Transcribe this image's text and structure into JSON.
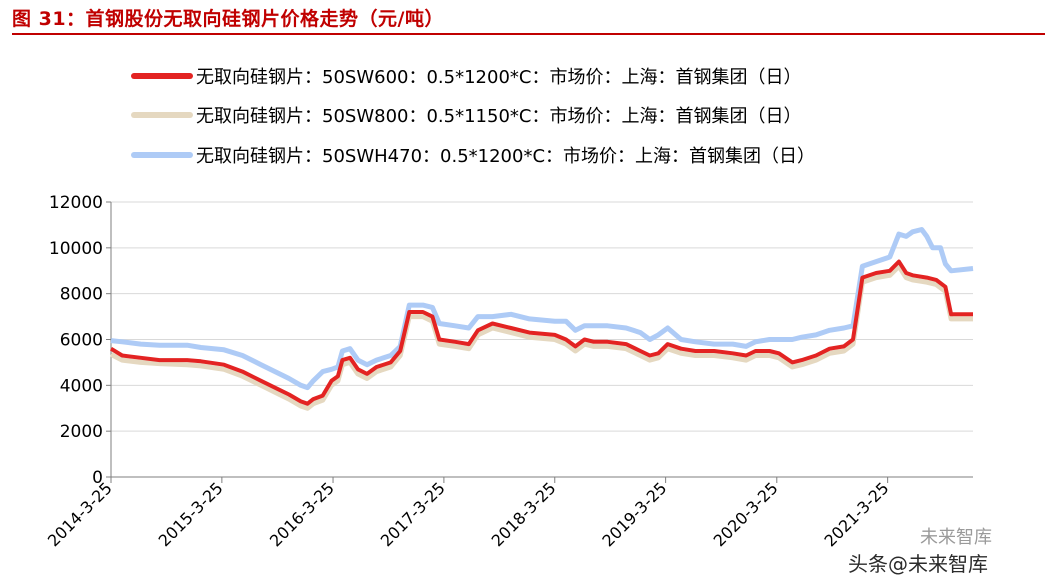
{
  "header": {
    "title": "图 31：首钢股份无取向硅钢片价格走势（元/吨）"
  },
  "watermark": {
    "line1": "未来智库",
    "line2_prefix": "头条",
    "line2_handle": "@未来智库"
  },
  "colors": {
    "title": "#c00000",
    "s1": "#e32322",
    "s2": "#e5d8c0",
    "s3": "#aecbf6",
    "axis": "#7f7f7f",
    "grid": "#d9d9d9"
  },
  "chart_data": {
    "type": "line",
    "title": "",
    "xlabel": "",
    "ylabel": "",
    "ylim": [
      0,
      12000
    ],
    "yticks": [
      "0",
      "2000",
      "4000",
      "6000",
      "8000",
      "10000",
      "12000"
    ],
    "xticks": [
      "2014-3-25",
      "2015-3-25",
      "2016-3-25",
      "2017-3-25",
      "2018-3-25",
      "2019-3-25",
      "2020-3-25",
      "2021-3-25"
    ],
    "x_range": [
      "2014-03-25",
      "2021-12-31"
    ],
    "grid": "horizontal",
    "legend_position": "top",
    "series": [
      {
        "name": "无取向硅钢片：50SW600：0.5*1200*C：市场价：上海：首钢集团（日）",
        "color": "#e32322",
        "points": [
          [
            "2014-03-25",
            5600
          ],
          [
            "2014-05-01",
            5300
          ],
          [
            "2014-07-01",
            5200
          ],
          [
            "2014-09-01",
            5100
          ],
          [
            "2014-12-01",
            5100
          ],
          [
            "2015-01-15",
            5050
          ],
          [
            "2015-04-01",
            4900
          ],
          [
            "2015-06-01",
            4600
          ],
          [
            "2015-08-01",
            4200
          ],
          [
            "2015-10-01",
            3800
          ],
          [
            "2015-11-01",
            3600
          ],
          [
            "2015-12-10",
            3300
          ],
          [
            "2016-01-01",
            3200
          ],
          [
            "2016-01-20",
            3400
          ],
          [
            "2016-02-20",
            3550
          ],
          [
            "2016-03-20",
            4200
          ],
          [
            "2016-04-10",
            4400
          ],
          [
            "2016-04-25",
            5100
          ],
          [
            "2016-05-20",
            5200
          ],
          [
            "2016-06-15",
            4700
          ],
          [
            "2016-07-15",
            4500
          ],
          [
            "2016-08-15",
            4800
          ],
          [
            "2016-10-01",
            5000
          ],
          [
            "2016-11-01",
            5500
          ],
          [
            "2016-12-01",
            7200
          ],
          [
            "2017-01-15",
            7200
          ],
          [
            "2017-02-15",
            7000
          ],
          [
            "2017-03-10",
            6000
          ],
          [
            "2017-05-01",
            5900
          ],
          [
            "2017-06-15",
            5800
          ],
          [
            "2017-07-15",
            6400
          ],
          [
            "2017-09-01",
            6700
          ],
          [
            "2017-11-01",
            6500
          ],
          [
            "2018-01-01",
            6300
          ],
          [
            "2018-03-25",
            6200
          ],
          [
            "2018-05-01",
            6000
          ],
          [
            "2018-06-01",
            5700
          ],
          [
            "2018-07-01",
            6000
          ],
          [
            "2018-08-01",
            5900
          ],
          [
            "2018-09-15",
            5900
          ],
          [
            "2018-11-15",
            5800
          ],
          [
            "2019-01-01",
            5500
          ],
          [
            "2019-02-01",
            5300
          ],
          [
            "2019-03-01",
            5400
          ],
          [
            "2019-04-01",
            5800
          ],
          [
            "2019-05-15",
            5600
          ],
          [
            "2019-07-01",
            5500
          ],
          [
            "2019-09-01",
            5500
          ],
          [
            "2019-11-01",
            5400
          ],
          [
            "2019-12-15",
            5300
          ],
          [
            "2020-01-15",
            5500
          ],
          [
            "2020-03-01",
            5500
          ],
          [
            "2020-04-01",
            5400
          ],
          [
            "2020-05-15",
            5000
          ],
          [
            "2020-06-15",
            5100
          ],
          [
            "2020-08-01",
            5300
          ],
          [
            "2020-09-15",
            5600
          ],
          [
            "2020-11-01",
            5700
          ],
          [
            "2020-12-01",
            6000
          ],
          [
            "2021-01-01",
            8700
          ],
          [
            "2021-02-15",
            8900
          ],
          [
            "2021-04-01",
            9000
          ],
          [
            "2021-05-01",
            9400
          ],
          [
            "2021-05-25",
            8900
          ],
          [
            "2021-06-15",
            8800
          ],
          [
            "2021-08-01",
            8700
          ],
          [
            "2021-09-01",
            8600
          ],
          [
            "2021-10-01",
            8300
          ],
          [
            "2021-10-20",
            7100
          ],
          [
            "2021-12-31",
            7100
          ]
        ]
      },
      {
        "name": "无取向硅钢片：50SW800：0.5*1150*C：市场价：上海：首钢集团（日）",
        "color": "#e5d8c0",
        "points": [
          [
            "2014-03-25",
            5350
          ],
          [
            "2014-05-01",
            5100
          ],
          [
            "2014-07-01",
            5000
          ],
          [
            "2014-09-01",
            4950
          ],
          [
            "2014-12-01",
            4900
          ],
          [
            "2015-01-15",
            4850
          ],
          [
            "2015-04-01",
            4700
          ],
          [
            "2015-06-01",
            4400
          ],
          [
            "2015-08-01",
            4000
          ],
          [
            "2015-10-01",
            3600
          ],
          [
            "2015-11-01",
            3400
          ],
          [
            "2015-12-10",
            3100
          ],
          [
            "2016-01-01",
            3000
          ],
          [
            "2016-01-20",
            3200
          ],
          [
            "2016-02-20",
            3350
          ],
          [
            "2016-03-20",
            4000
          ],
          [
            "2016-04-10",
            4200
          ],
          [
            "2016-04-25",
            4900
          ],
          [
            "2016-05-20",
            5000
          ],
          [
            "2016-06-15",
            4500
          ],
          [
            "2016-07-15",
            4300
          ],
          [
            "2016-08-15",
            4600
          ],
          [
            "2016-10-01",
            4800
          ],
          [
            "2016-11-01",
            5300
          ],
          [
            "2016-12-01",
            7000
          ],
          [
            "2017-01-15",
            7000
          ],
          [
            "2017-02-15",
            6800
          ],
          [
            "2017-03-10",
            5800
          ],
          [
            "2017-05-01",
            5700
          ],
          [
            "2017-06-15",
            5600
          ],
          [
            "2017-07-15",
            6200
          ],
          [
            "2017-09-01",
            6500
          ],
          [
            "2017-11-01",
            6300
          ],
          [
            "2018-01-01",
            6100
          ],
          [
            "2018-03-25",
            6000
          ],
          [
            "2018-05-01",
            5800
          ],
          [
            "2018-06-01",
            5500
          ],
          [
            "2018-07-01",
            5800
          ],
          [
            "2018-08-01",
            5700
          ],
          [
            "2018-09-15",
            5700
          ],
          [
            "2018-11-15",
            5600
          ],
          [
            "2019-01-01",
            5300
          ],
          [
            "2019-02-01",
            5100
          ],
          [
            "2019-03-01",
            5200
          ],
          [
            "2019-04-01",
            5600
          ],
          [
            "2019-05-15",
            5400
          ],
          [
            "2019-07-01",
            5300
          ],
          [
            "2019-09-01",
            5300
          ],
          [
            "2019-11-01",
            5200
          ],
          [
            "2019-12-15",
            5100
          ],
          [
            "2020-01-15",
            5300
          ],
          [
            "2020-03-01",
            5300
          ],
          [
            "2020-04-01",
            5200
          ],
          [
            "2020-05-15",
            4800
          ],
          [
            "2020-06-15",
            4900
          ],
          [
            "2020-08-01",
            5100
          ],
          [
            "2020-09-15",
            5400
          ],
          [
            "2020-11-01",
            5500
          ],
          [
            "2020-12-01",
            5800
          ],
          [
            "2021-01-01",
            8500
          ],
          [
            "2021-02-15",
            8700
          ],
          [
            "2021-04-01",
            8800
          ],
          [
            "2021-05-01",
            9200
          ],
          [
            "2021-05-25",
            8700
          ],
          [
            "2021-06-15",
            8600
          ],
          [
            "2021-08-01",
            8500
          ],
          [
            "2021-09-01",
            8400
          ],
          [
            "2021-10-01",
            8100
          ],
          [
            "2021-10-20",
            6900
          ],
          [
            "2021-12-31",
            6900
          ]
        ]
      },
      {
        "name": "无取向硅钢片：50SWH470：0.5*1200*C：市场价：上海：首钢集团（日）",
        "color": "#aecbf6",
        "points": [
          [
            "2014-03-25",
            5950
          ],
          [
            "2014-05-01",
            5900
          ],
          [
            "2014-07-01",
            5800
          ],
          [
            "2014-09-01",
            5750
          ],
          [
            "2014-12-01",
            5750
          ],
          [
            "2015-01-15",
            5650
          ],
          [
            "2015-04-01",
            5550
          ],
          [
            "2015-06-01",
            5300
          ],
          [
            "2015-08-01",
            4900
          ],
          [
            "2015-10-01",
            4500
          ],
          [
            "2015-11-01",
            4300
          ],
          [
            "2015-12-10",
            4000
          ],
          [
            "2016-01-01",
            3900
          ],
          [
            "2016-01-20",
            4200
          ],
          [
            "2016-02-20",
            4600
          ],
          [
            "2016-03-20",
            4700
          ],
          [
            "2016-04-10",
            4800
          ],
          [
            "2016-04-25",
            5500
          ],
          [
            "2016-05-20",
            5600
          ],
          [
            "2016-06-15",
            5100
          ],
          [
            "2016-07-15",
            4900
          ],
          [
            "2016-08-15",
            5100
          ],
          [
            "2016-10-01",
            5300
          ],
          [
            "2016-11-01",
            5700
          ],
          [
            "2016-12-01",
            7500
          ],
          [
            "2017-01-15",
            7500
          ],
          [
            "2017-02-15",
            7400
          ],
          [
            "2017-03-10",
            6700
          ],
          [
            "2017-05-01",
            6600
          ],
          [
            "2017-06-15",
            6500
          ],
          [
            "2017-07-15",
            7000
          ],
          [
            "2017-09-01",
            7000
          ],
          [
            "2017-11-01",
            7100
          ],
          [
            "2018-01-01",
            6900
          ],
          [
            "2018-03-25",
            6800
          ],
          [
            "2018-05-01",
            6800
          ],
          [
            "2018-06-01",
            6400
          ],
          [
            "2018-07-01",
            6600
          ],
          [
            "2018-08-01",
            6600
          ],
          [
            "2018-09-15",
            6600
          ],
          [
            "2018-11-15",
            6500
          ],
          [
            "2019-01-01",
            6300
          ],
          [
            "2019-02-01",
            6000
          ],
          [
            "2019-03-01",
            6200
          ],
          [
            "2019-04-01",
            6500
          ],
          [
            "2019-05-15",
            6000
          ],
          [
            "2019-07-01",
            5900
          ],
          [
            "2019-09-01",
            5800
          ],
          [
            "2019-11-01",
            5800
          ],
          [
            "2019-12-15",
            5700
          ],
          [
            "2020-01-15",
            5900
          ],
          [
            "2020-03-01",
            6000
          ],
          [
            "2020-04-01",
            6000
          ],
          [
            "2020-05-15",
            6000
          ],
          [
            "2020-06-15",
            6100
          ],
          [
            "2020-08-01",
            6200
          ],
          [
            "2020-09-15",
            6400
          ],
          [
            "2020-11-01",
            6500
          ],
          [
            "2020-12-01",
            6600
          ],
          [
            "2021-01-01",
            9200
          ],
          [
            "2021-02-15",
            9400
          ],
          [
            "2021-04-01",
            9600
          ],
          [
            "2021-05-01",
            10600
          ],
          [
            "2021-05-25",
            10500
          ],
          [
            "2021-06-15",
            10700
          ],
          [
            "2021-07-15",
            10800
          ],
          [
            "2021-08-01",
            10500
          ],
          [
            "2021-08-20",
            10000
          ],
          [
            "2021-09-15",
            10000
          ],
          [
            "2021-10-01",
            9300
          ],
          [
            "2021-10-20",
            9000
          ],
          [
            "2021-12-31",
            9100
          ]
        ]
      }
    ]
  }
}
